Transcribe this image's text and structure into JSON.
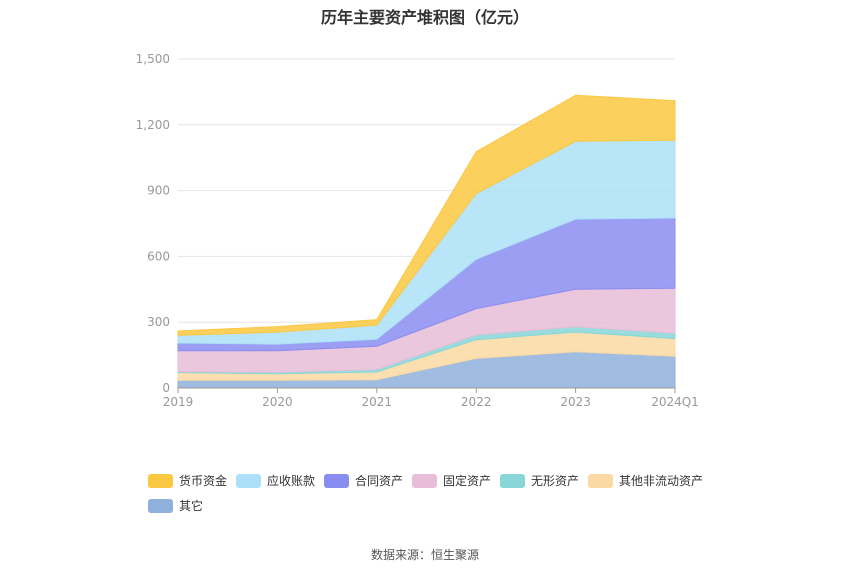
{
  "chart_data": {
    "type": "area",
    "title": "历年主要资产堆积图（亿元）",
    "categories": [
      "2019",
      "2020",
      "2021",
      "2022",
      "2023",
      "2024Q1"
    ],
    "ylim": [
      0,
      1500
    ],
    "yticks": [
      "0",
      "300",
      "600",
      "900",
      "1,200",
      "1,500"
    ],
    "ytick_values": [
      0,
      300,
      600,
      900,
      1200,
      1500
    ],
    "grid": true,
    "legend_position": "bottom",
    "stacked": true,
    "series": [
      {
        "name": "其它",
        "color": "#8fb0dc",
        "values": [
          35,
          35,
          38,
          135,
          165,
          145
        ]
      },
      {
        "name": "其他非流动资产",
        "color": "#fbd9a3",
        "values": [
          35,
          30,
          35,
          85,
          90,
          80
        ]
      },
      {
        "name": "无形资产",
        "color": "#88d6d8",
        "values": [
          5,
          7,
          12,
          22,
          25,
          25
        ]
      },
      {
        "name": "固定资产",
        "color": "#e8bdd8",
        "values": [
          95,
          98,
          105,
          120,
          170,
          205
        ]
      },
      {
        "name": "合同资产",
        "color": "#8a8df0",
        "values": [
          35,
          30,
          32,
          225,
          320,
          320
        ]
      },
      {
        "name": "应收账款",
        "color": "#ade0f8",
        "values": [
          35,
          55,
          65,
          300,
          355,
          355
        ]
      },
      {
        "name": "货币资金",
        "color": "#fbc841",
        "values": [
          20,
          25,
          25,
          190,
          210,
          180
        ]
      }
    ],
    "legend_order": [
      "货币资金",
      "应收账款",
      "合同资产",
      "固定资产",
      "无形资产",
      "其他非流动资产",
      "其它"
    ]
  },
  "source": "数据来源：恒生聚源"
}
